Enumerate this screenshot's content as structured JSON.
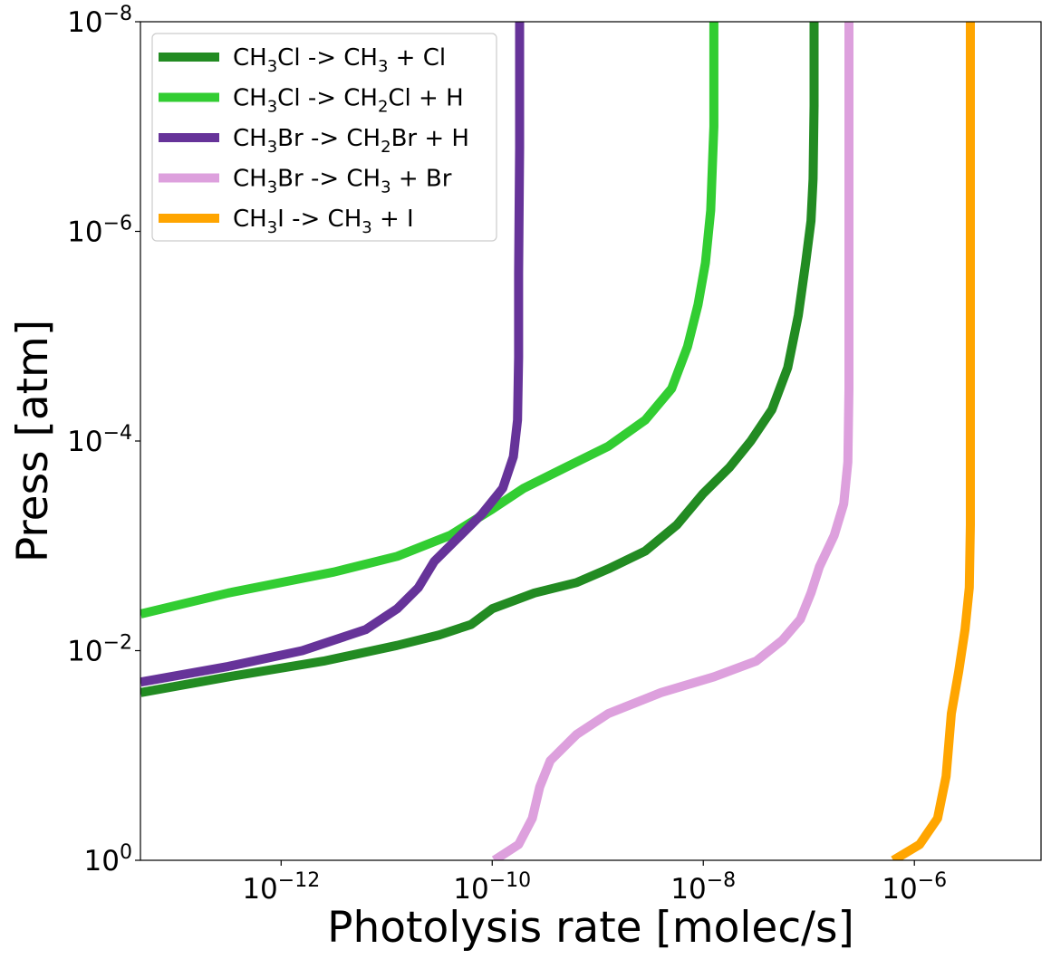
{
  "chart_data": {
    "type": "line",
    "title": "",
    "xlabel": "Photolysis rate [molec/s]",
    "ylabel": "Press [atm]",
    "xscale": "log",
    "yscale": "log",
    "y_inverted": true,
    "xlim_log10": [
      -13.333,
      -4.8
    ],
    "ylim_log10": [
      0,
      -8
    ],
    "x_ticks": [
      {
        "base": "10",
        "exp": "−12",
        "log10": -12
      },
      {
        "base": "10",
        "exp": "−10",
        "log10": -10
      },
      {
        "base": "10",
        "exp": "−8",
        "log10": -8
      },
      {
        "base": "10",
        "exp": "−6",
        "log10": -6
      }
    ],
    "y_ticks": [
      {
        "base": "10",
        "exp": "0",
        "log10": 0
      },
      {
        "base": "10",
        "exp": "−2",
        "log10": -2
      },
      {
        "base": "10",
        "exp": "−4",
        "log10": -4
      },
      {
        "base": "10",
        "exp": "−6",
        "log10": -6
      },
      {
        "base": "10",
        "exp": "−8",
        "log10": -8
      }
    ],
    "legend_position": "top-left",
    "series": [
      {
        "name": "CH3Cl -> CH3 + Cl",
        "label_parts": [
          [
            "CH",
            ""
          ],
          [
            "3",
            "sub"
          ],
          [
            "Cl -> CH",
            ""
          ],
          [
            "3",
            "sub"
          ],
          [
            " + Cl",
            ""
          ]
        ],
        "color": "#228b22",
        "log10_rate": [
          -13.33,
          -12.5,
          -11.6,
          -10.9,
          -10.5,
          -10.2,
          -10.0,
          -9.6,
          -9.2,
          -8.9,
          -8.55,
          -8.25,
          -8.0,
          -7.75,
          -7.55,
          -7.35,
          -7.2,
          -7.1,
          -7.03,
          -6.98,
          -6.96,
          -6.95,
          -6.95
        ],
        "log10_press": [
          -1.6,
          -1.75,
          -1.9,
          -2.05,
          -2.15,
          -2.25,
          -2.4,
          -2.55,
          -2.65,
          -2.78,
          -2.95,
          -3.2,
          -3.5,
          -3.75,
          -4.0,
          -4.3,
          -4.7,
          -5.2,
          -5.7,
          -6.1,
          -6.5,
          -7.2,
          -8.0
        ]
      },
      {
        "name": "CH3Cl -> CH2Cl + H",
        "label_parts": [
          [
            "CH",
            ""
          ],
          [
            "3",
            "sub"
          ],
          [
            "Cl -> CH",
            ""
          ],
          [
            "2",
            "sub"
          ],
          [
            "Cl + H",
            ""
          ]
        ],
        "color": "#32cd32",
        "log10_rate": [
          -13.33,
          -12.5,
          -11.5,
          -10.9,
          -10.4,
          -10.0,
          -9.7,
          -9.3,
          -8.9,
          -8.55,
          -8.3,
          -8.15,
          -8.05,
          -7.98,
          -7.93,
          -7.9,
          -7.9
        ],
        "log10_press": [
          -2.35,
          -2.55,
          -2.75,
          -2.9,
          -3.1,
          -3.35,
          -3.55,
          -3.75,
          -3.95,
          -4.2,
          -4.5,
          -4.9,
          -5.3,
          -5.7,
          -6.2,
          -7.0,
          -8.0
        ]
      },
      {
        "name": "CH3Br -> CH2Br + H",
        "label_parts": [
          [
            "CH",
            ""
          ],
          [
            "3",
            "sub"
          ],
          [
            "Br -> CH",
            ""
          ],
          [
            "2",
            "sub"
          ],
          [
            "Br + H",
            ""
          ]
        ],
        "color": "#663399",
        "log10_rate": [
          -13.33,
          -12.5,
          -11.8,
          -11.2,
          -10.9,
          -10.7,
          -10.55,
          -10.3,
          -10.1,
          -9.9,
          -9.8,
          -9.76,
          -9.75,
          -9.75,
          -9.74,
          -9.74
        ],
        "log10_press": [
          -1.7,
          -1.85,
          -2.0,
          -2.2,
          -2.4,
          -2.6,
          -2.85,
          -3.1,
          -3.3,
          -3.55,
          -3.85,
          -4.2,
          -4.8,
          -5.6,
          -6.8,
          -8.0
        ]
      },
      {
        "name": "CH3Br -> CH3 + Br",
        "label_parts": [
          [
            "CH",
            ""
          ],
          [
            "3",
            "sub"
          ],
          [
            "Br -> CH",
            ""
          ],
          [
            "3",
            "sub"
          ],
          [
            " + Br",
            ""
          ]
        ],
        "color": "#dda0dd",
        "log10_rate": [
          -9.98,
          -9.75,
          -9.62,
          -9.55,
          -9.45,
          -9.2,
          -8.9,
          -8.4,
          -7.9,
          -7.5,
          -7.25,
          -7.08,
          -6.98,
          -6.9,
          -6.76,
          -6.67,
          -6.63,
          -6.62,
          -6.62,
          -6.62
        ],
        "log10_press": [
          0.0,
          -0.15,
          -0.4,
          -0.7,
          -0.95,
          -1.2,
          -1.4,
          -1.6,
          -1.75,
          -1.9,
          -2.1,
          -2.3,
          -2.55,
          -2.8,
          -3.1,
          -3.4,
          -3.8,
          -4.5,
          -6.0,
          -8.0
        ]
      },
      {
        "name": "CH3I -> CH3 + I",
        "label_parts": [
          [
            "CH",
            ""
          ],
          [
            "3",
            "sub"
          ],
          [
            "I -> CH",
            ""
          ],
          [
            "3",
            "sub"
          ],
          [
            " + I",
            ""
          ]
        ],
        "color": "#ffa500",
        "log10_rate": [
          -6.2,
          -5.95,
          -5.78,
          -5.7,
          -5.65,
          -5.58,
          -5.52,
          -5.48,
          -5.47,
          -5.47,
          -5.47
        ],
        "log10_press": [
          0.0,
          -0.15,
          -0.4,
          -0.8,
          -1.4,
          -1.8,
          -2.2,
          -2.6,
          -3.2,
          -5.0,
          -8.0
        ]
      }
    ]
  }
}
